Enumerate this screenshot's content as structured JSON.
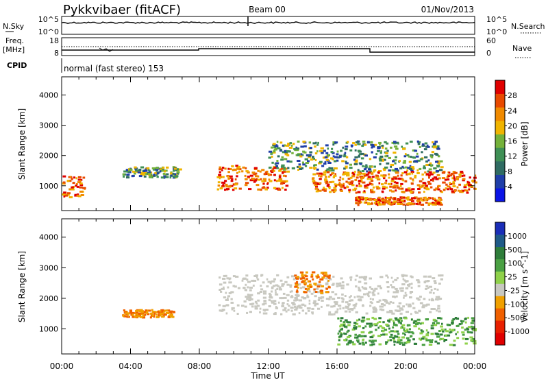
{
  "header": {
    "station": "Pykkvibaer (fitACF)",
    "beam": "Beam 00",
    "date": "01/Nov/2013"
  },
  "sky_panel": {
    "left_label": "N.Sky",
    "ticks": [
      "10^5",
      "10^0"
    ],
    "right_ticks": [
      "10^5",
      "10^0"
    ],
    "right_label": "N.Search"
  },
  "freq_panel": {
    "left_label_1": "Freq.",
    "left_label_2": "[MHz]",
    "ticks": [
      "18",
      "8"
    ],
    "right_ticks": [
      "60",
      "0"
    ],
    "right_label": "Nave"
  },
  "cpid_panel": {
    "left_label": "CPID",
    "mode_text": "normal (fast stereo) 153"
  },
  "x_axis": {
    "label": "Time UT",
    "ticks": [
      "00:00",
      "04:00",
      "08:00",
      "12:00",
      "16:00",
      "20:00",
      "00:00"
    ]
  },
  "chart_data": [
    {
      "type": "heatmap",
      "name": "power",
      "ylabel": "Slant Range [km]",
      "yticks": [
        "1000",
        "2000",
        "3000",
        "4000"
      ],
      "ylim": [
        180,
        4600
      ],
      "xlim_hours": [
        0,
        24
      ],
      "colorbar": {
        "label": "Power [dB]",
        "ticks": [
          "4",
          "8",
          "12",
          "16",
          "20",
          "24",
          "28"
        ],
        "range": [
          0,
          32
        ],
        "colors": [
          "#0a14e6",
          "#1f3ea8",
          "#2f6b62",
          "#3f8f55",
          "#74b13a",
          "#f0b400",
          "#f08a00",
          "#e84a00",
          "#e00000"
        ]
      },
      "echo_regions": [
        {
          "t0": 0.0,
          "t1": 1.3,
          "r0": 650,
          "r1": 1350,
          "level": "strong"
        },
        {
          "t0": 3.5,
          "t1": 6.8,
          "r0": 1300,
          "r1": 1650,
          "level": "medium"
        },
        {
          "t0": 9.0,
          "t1": 13.0,
          "r0": 900,
          "r1": 1700,
          "level": "strong"
        },
        {
          "t0": 12.0,
          "t1": 22.0,
          "r0": 1500,
          "r1": 2500,
          "level": "medium"
        },
        {
          "t0": 14.5,
          "t1": 24.0,
          "r0": 800,
          "r1": 1500,
          "level": "strong"
        },
        {
          "t0": 17.0,
          "t1": 22.0,
          "r0": 400,
          "r1": 650,
          "level": "strong"
        }
      ]
    },
    {
      "type": "heatmap",
      "name": "velocity",
      "ylabel": "Slant Range [km]",
      "yticks": [
        "1000",
        "2000",
        "3000",
        "4000"
      ],
      "ylim": [
        180,
        4600
      ],
      "xlim_hours": [
        0,
        24
      ],
      "colorbar": {
        "label": "Velocity [m s^-1]",
        "ticks": [
          "1000",
          "500",
          "100",
          "25",
          "-25",
          "-100",
          "-500",
          "-1000"
        ],
        "colors": [
          "#1a2eb8",
          "#1f5a88",
          "#2e7d3a",
          "#4aa043",
          "#8fd14a",
          "#c8c8c0",
          "#f0a000",
          "#f06000",
          "#e82000",
          "#e00000"
        ]
      },
      "echo_regions": [
        {
          "t0": 3.5,
          "t1": 6.5,
          "r0": 1400,
          "r1": 1650,
          "level": "orange"
        },
        {
          "t0": 9.0,
          "t1": 22.0,
          "r0": 1500,
          "r1": 2800,
          "level": "grey"
        },
        {
          "t0": 13.5,
          "t1": 15.5,
          "r0": 2200,
          "r1": 2900,
          "level": "orange"
        },
        {
          "t0": 16.0,
          "t1": 24.0,
          "r0": 500,
          "r1": 1400,
          "level": "green"
        }
      ]
    }
  ]
}
